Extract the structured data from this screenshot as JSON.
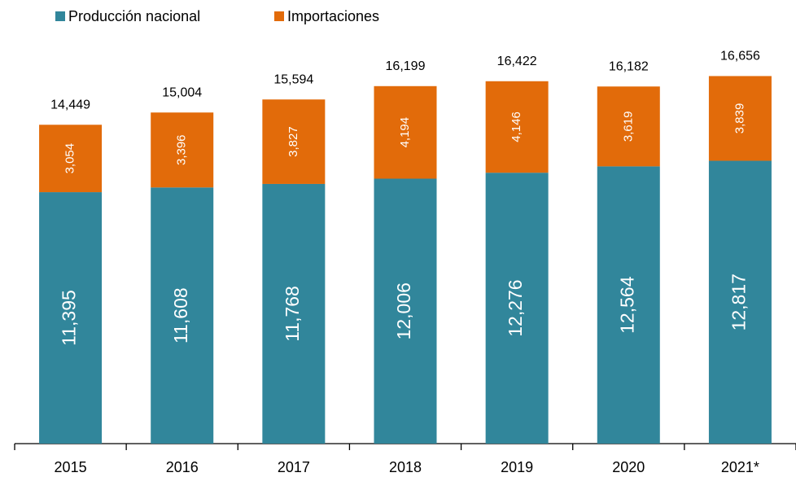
{
  "chart_data": {
    "type": "stacked_bar",
    "categories": [
      "2015",
      "2016",
      "2017",
      "2018",
      "2019",
      "2020",
      "2021*"
    ],
    "series": [
      {
        "name": "Producción nacional",
        "color": "#31869b",
        "values": [
          11395,
          11608,
          11768,
          12006,
          12276,
          12564,
          12817
        ],
        "value_labels": [
          "11,395",
          "11,608",
          "11,768",
          "12,006",
          "12,276",
          "12,564",
          "12,817"
        ]
      },
      {
        "name": "Importaciones",
        "color": "#e26b0a",
        "values": [
          3054,
          3396,
          3827,
          4194,
          4146,
          3619,
          3839
        ],
        "value_labels": [
          "3,054",
          "3,396",
          "3,827",
          "4,194",
          "4,146",
          "3,619",
          "3,839"
        ]
      }
    ],
    "totals": [
      14449,
      15004,
      15594,
      16199,
      16422,
      16182,
      16656
    ],
    "total_labels": [
      "14,449",
      "15,004",
      "15,594",
      "16,199",
      "16,422",
      "16,182",
      "16,656"
    ],
    "ylim": [
      0,
      18000
    ]
  }
}
